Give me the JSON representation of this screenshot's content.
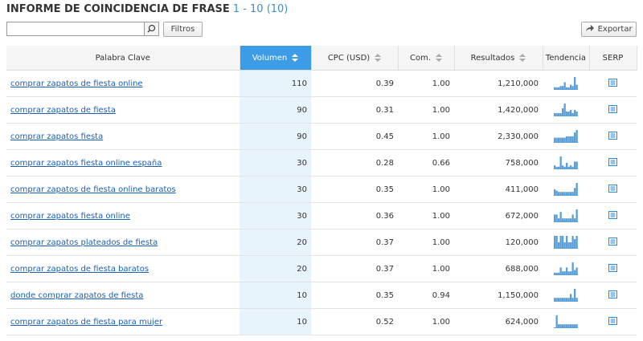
{
  "header": {
    "title": "INFORME DE COINCIDENCIA DE FRASE",
    "range": "1 - 10 (10)"
  },
  "toolbar": {
    "filters": "Filtros",
    "export": "Exportar"
  },
  "table": {
    "columns": [
      "Palabra Clave",
      "Volumen",
      "CPC (USD)",
      "Com.",
      "Resultados",
      "Tendencia",
      "SERP"
    ],
    "rows": [
      {
        "keyword": "comprar zapatos de fiesta online",
        "volume": "110",
        "cpc": "0.39",
        "com": "1.00",
        "results": "1,210,000",
        "trend": [
          2,
          2,
          2,
          3,
          3,
          6,
          2,
          2,
          4,
          3,
          10,
          4
        ]
      },
      {
        "keyword": "comprar zapatos de fiesta",
        "volume": "90",
        "cpc": "0.31",
        "com": "1.00",
        "results": "1,420,000",
        "trend": [
          2,
          2,
          2,
          2,
          5,
          8,
          3,
          3,
          4,
          2,
          4,
          3
        ]
      },
      {
        "keyword": "comprar zapatos fiesta",
        "volume": "90",
        "cpc": "0.45",
        "com": "1.00",
        "results": "2,330,000",
        "trend": [
          4,
          4,
          4,
          4,
          4,
          4,
          5,
          5,
          5,
          5,
          8,
          10
        ]
      },
      {
        "keyword": "comprar zapatos fiesta online españa",
        "volume": "30",
        "cpc": "0.28",
        "com": "0.66",
        "results": "758,000",
        "trend": [
          3,
          2,
          2,
          10,
          3,
          2,
          5,
          2,
          3,
          2,
          6,
          6
        ]
      },
      {
        "keyword": "comprar zapatos de fiesta online baratos",
        "volume": "30",
        "cpc": "0.35",
        "com": "1.00",
        "results": "411,000",
        "trend": [
          5,
          4,
          3,
          3,
          3,
          3,
          3,
          3,
          3,
          3,
          6,
          10
        ]
      },
      {
        "keyword": "comprar zapatos fiesta online",
        "volume": "30",
        "cpc": "0.36",
        "com": "1.00",
        "results": "672,000",
        "trend": [
          6,
          6,
          3,
          8,
          3,
          3,
          3,
          3,
          3,
          6,
          3,
          10
        ]
      },
      {
        "keyword": "comprar zapatos plateados de fiesta",
        "volume": "20",
        "cpc": "0.37",
        "com": "1.00",
        "results": "120,000",
        "trend": [
          8,
          8,
          4,
          8,
          8,
          4,
          8,
          4,
          4,
          8,
          6,
          8
        ]
      },
      {
        "keyword": "comprar zapatos de fiesta baratos",
        "volume": "20",
        "cpc": "0.37",
        "com": "1.00",
        "results": "688,000",
        "trend": [
          2,
          2,
          2,
          6,
          3,
          3,
          6,
          3,
          3,
          10,
          4,
          6
        ]
      },
      {
        "keyword": "donde comprar zapatos de fiesta",
        "volume": "10",
        "cpc": "0.35",
        "com": "0.94",
        "results": "1,150,000",
        "trend": [
          3,
          3,
          3,
          3,
          3,
          3,
          3,
          3,
          6,
          3,
          10,
          3
        ]
      },
      {
        "keyword": "comprar zapatos de fiesta para mujer",
        "volume": "10",
        "cpc": "0.52",
        "com": "1.00",
        "results": "624,000",
        "trend": [
          0,
          10,
          3,
          3,
          3,
          3,
          3,
          3,
          3,
          3,
          3,
          3
        ]
      }
    ]
  }
}
